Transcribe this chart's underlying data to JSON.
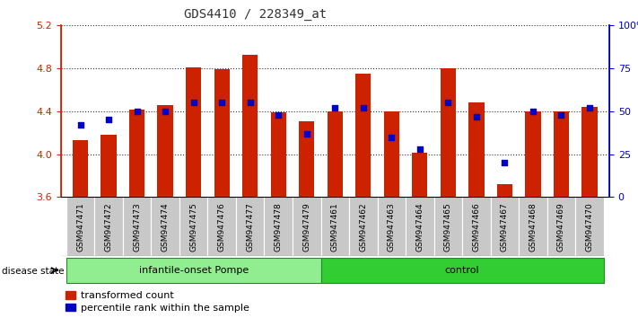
{
  "title": "GDS4410 / 228349_at",
  "samples": [
    "GSM947471",
    "GSM947472",
    "GSM947473",
    "GSM947474",
    "GSM947475",
    "GSM947476",
    "GSM947477",
    "GSM947478",
    "GSM947479",
    "GSM947461",
    "GSM947462",
    "GSM947463",
    "GSM947464",
    "GSM947465",
    "GSM947466",
    "GSM947467",
    "GSM947468",
    "GSM947469",
    "GSM947470"
  ],
  "red_values": [
    4.13,
    4.18,
    4.42,
    4.46,
    4.81,
    4.79,
    4.93,
    4.39,
    4.31,
    4.4,
    4.75,
    4.4,
    4.01,
    4.8,
    4.48,
    3.72,
    4.4,
    4.4,
    4.44
  ],
  "blue_percentiles": [
    42,
    45,
    50,
    50,
    55,
    55,
    55,
    48,
    37,
    52,
    52,
    35,
    28,
    55,
    47,
    20,
    50,
    48,
    52
  ],
  "group1_label": "infantile-onset Pompe",
  "group2_label": "control",
  "group1_count": 9,
  "group2_count": 10,
  "ylim_left": [
    3.6,
    5.2
  ],
  "ylim_right": [
    0,
    100
  ],
  "yticks_left": [
    3.6,
    4.0,
    4.4,
    4.8,
    5.2
  ],
  "yticks_right": [
    0,
    25,
    50,
    75,
    100
  ],
  "bar_color": "#CC2200",
  "marker_color": "#0000CC",
  "group1_bg": "#90EE90",
  "group2_bg": "#32CD32",
  "axis_color_left": "#CC2200",
  "axis_color_right": "#0000CC",
  "cell_bg": "#C8C8C8",
  "cell_border": "#FFFFFF"
}
